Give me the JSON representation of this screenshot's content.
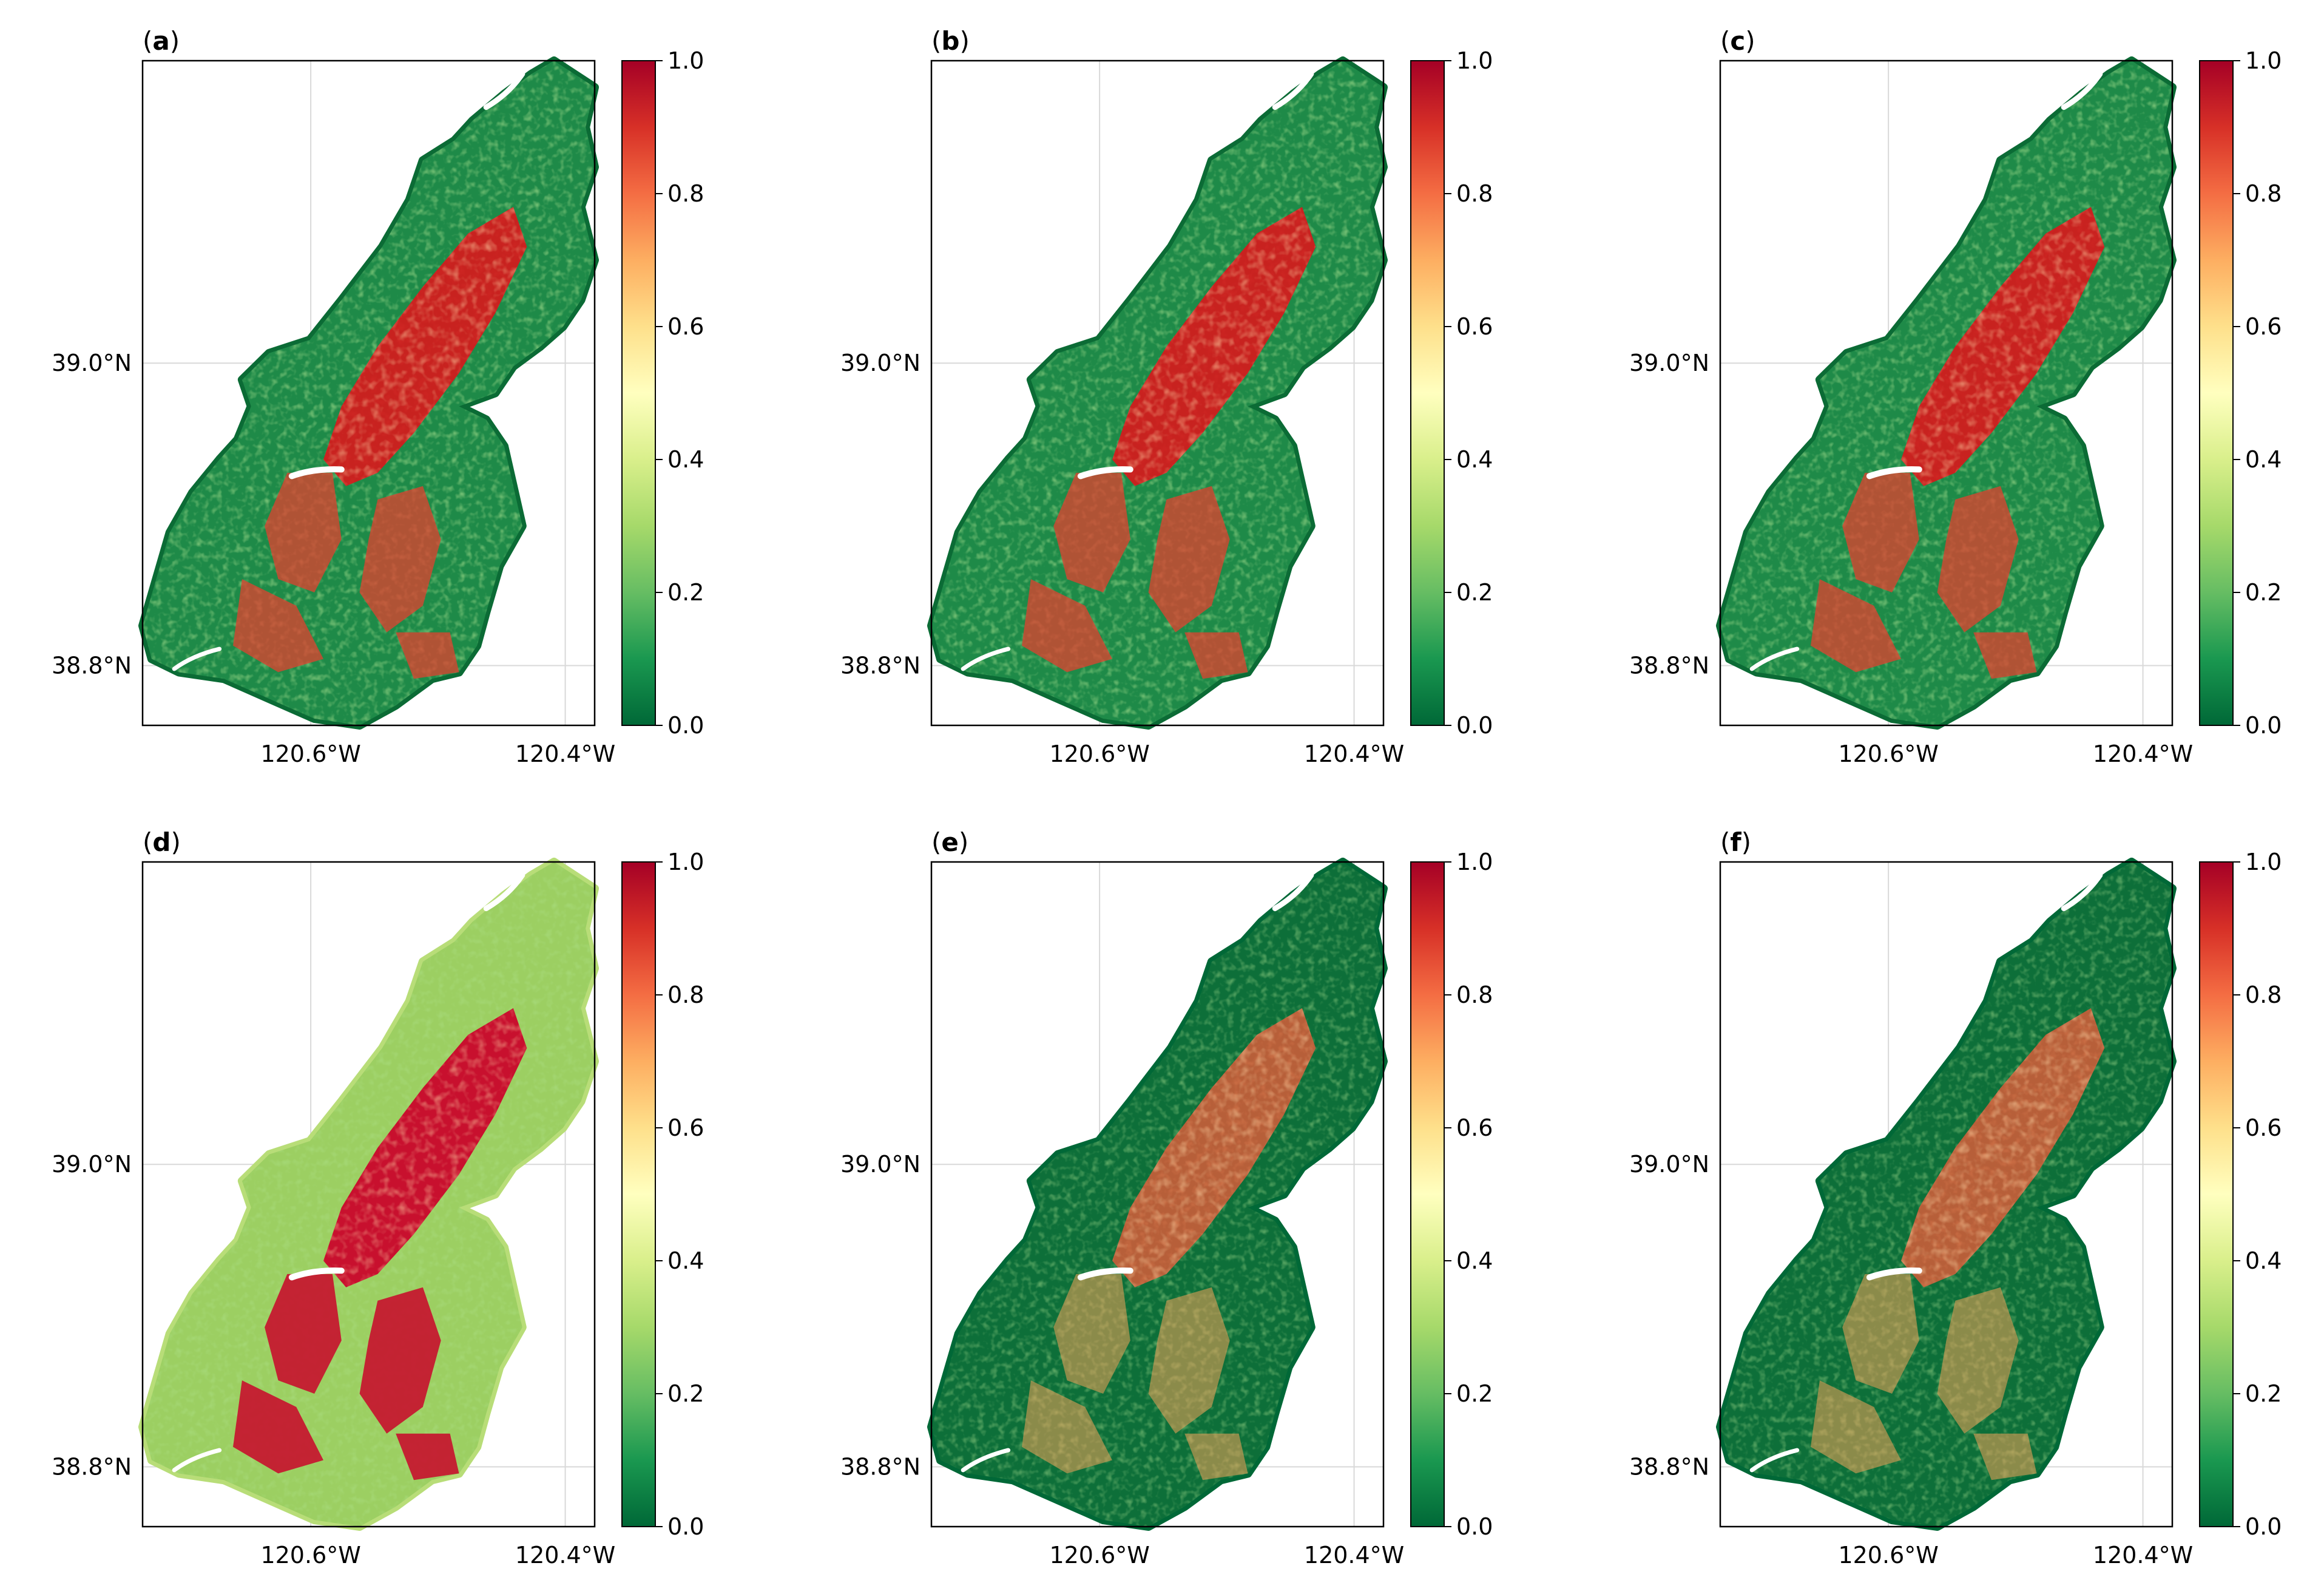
{
  "panels": [
    {
      "label": "a",
      "style": "normal"
    },
    {
      "label": "b",
      "style": "normal"
    },
    {
      "label": "c",
      "style": "normal"
    },
    {
      "label": "d",
      "style": "saturated"
    },
    {
      "label": "e",
      "style": "lower"
    },
    {
      "label": "f",
      "style": "lower"
    }
  ],
  "axes": {
    "x_ticks": [
      "120.6°W",
      "120.4°W"
    ],
    "y_ticks": [
      "39.0°N",
      "38.8°N"
    ]
  },
  "colorbar": {
    "ticks": [
      "0.0",
      "0.2",
      "0.4",
      "0.6",
      "0.8",
      "1.0"
    ],
    "range": [
      0,
      1
    ],
    "colormap": [
      "#006837",
      "#1a9850",
      "#66bd63",
      "#a6d96a",
      "#d9ef8b",
      "#ffffbf",
      "#fee08b",
      "#fdae61",
      "#f46d43",
      "#d73027",
      "#a50026"
    ]
  },
  "colors": {
    "grid": "#d9d9d9",
    "frame": "#000000",
    "background_dark_green": "#006837",
    "burn_red": "#c8102e"
  }
}
